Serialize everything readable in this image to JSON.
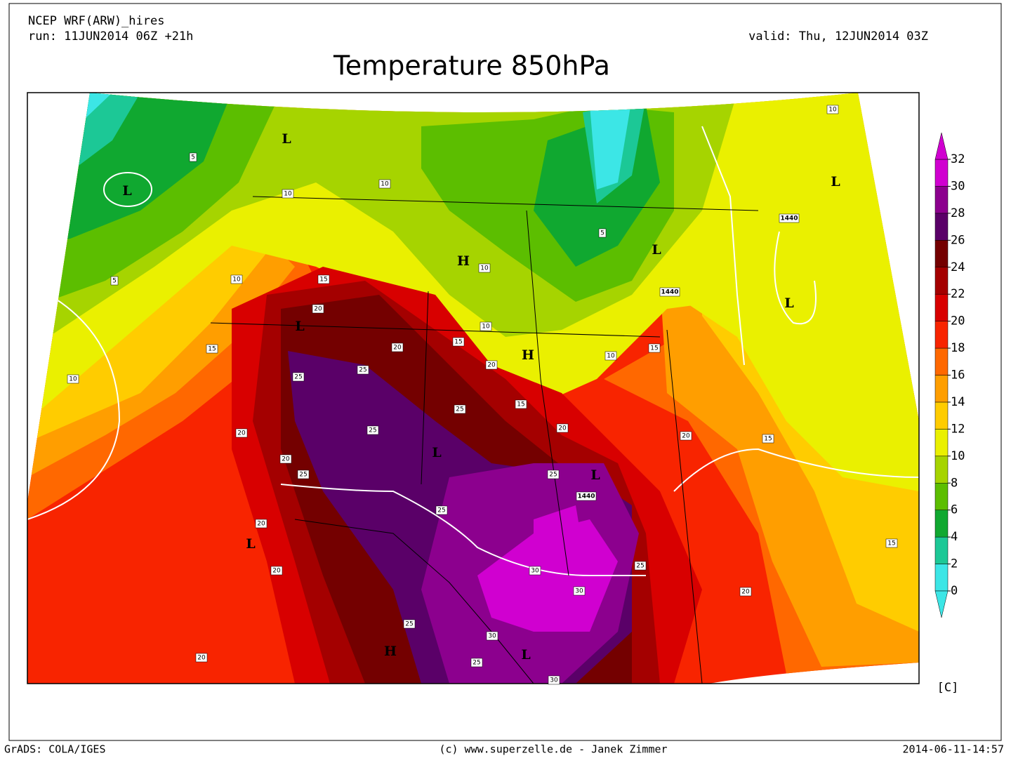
{
  "header": {
    "model": "NCEP WRF(ARW)_hires",
    "run": "run: 11JUN2014 06Z +21h",
    "valid": "valid: Thu, 12JUN2014 03Z",
    "title": "Temperature 850hPa"
  },
  "map": {
    "pressure_centers": [
      "L",
      "L",
      "L",
      "H",
      "L",
      "L",
      "L",
      "H",
      "L",
      "L",
      "L",
      "H",
      "L"
    ],
    "contour_labels": [
      10,
      10,
      10,
      5,
      5,
      10,
      5,
      10,
      15,
      20,
      10,
      15,
      20,
      15,
      10,
      15,
      10,
      20,
      25,
      25,
      15,
      20,
      25,
      25,
      20,
      20,
      15,
      20,
      25,
      25,
      25,
      20,
      25,
      30,
      30,
      15,
      20,
      20,
      25,
      30,
      25,
      20,
      30,
      1440,
      1440,
      1440
    ]
  },
  "colorbar": {
    "ticks": [
      0,
      2,
      4,
      6,
      8,
      10,
      12,
      14,
      16,
      18,
      20,
      22,
      24,
      26,
      28,
      30,
      32
    ],
    "colors": [
      "#3ce6e6",
      "#1cc896",
      "#10a830",
      "#5cbe00",
      "#a6d400",
      "#eaf000",
      "#ffcc00",
      "#ff9e00",
      "#ff6800",
      "#f82400",
      "#d80000",
      "#a40000",
      "#740000",
      "#5a0068",
      "#8c008e",
      "#d000d0"
    ],
    "unit": "[C]"
  },
  "footer": {
    "left": "GrADS: COLA/IGES",
    "center": "(c) www.superzelle.de - Janek Zimmer",
    "right": "2014-06-11-14:57"
  }
}
